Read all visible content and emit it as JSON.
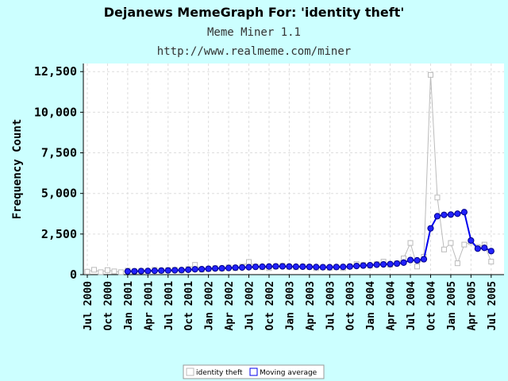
{
  "chart_data": {
    "type": "line",
    "title": "Dejanews MemeGraph For: 'identity theft'",
    "subtitle": "Meme Miner 1.1",
    "url": "http://www.realmeme.com/miner",
    "ylabel": "Frequency Count",
    "xlabel": "",
    "ylim": [
      0,
      13000
    ],
    "yticks": [
      0,
      2500,
      5000,
      7500,
      10000,
      12500
    ],
    "ytick_labels": [
      "0",
      "2,500",
      "5,000",
      "7,500",
      "10,000",
      "12,500"
    ],
    "grid": true,
    "legend_position": "bottom-center",
    "categories": [
      "Jul 2000",
      "Aug 2000",
      "Sep 2000",
      "Oct 2000",
      "Nov 2000",
      "Dec 2000",
      "Jan 2001",
      "Feb 2001",
      "Mar 2001",
      "Apr 2001",
      "May 2001",
      "Jun 2001",
      "Jul 2001",
      "Aug 2001",
      "Sep 2001",
      "Oct 2001",
      "Nov 2001",
      "Dec 2001",
      "Jan 2002",
      "Feb 2002",
      "Mar 2002",
      "Apr 2002",
      "May 2002",
      "Jun 2002",
      "Jul 2002",
      "Aug 2002",
      "Sep 2002",
      "Oct 2002",
      "Nov 2002",
      "Dec 2002",
      "Jan 2003",
      "Feb 2003",
      "Mar 2003",
      "Apr 2003",
      "May 2003",
      "Jun 2003",
      "Jul 2003",
      "Aug 2003",
      "Sep 2003",
      "Oct 2003",
      "Nov 2003",
      "Dec 2003",
      "Jan 2004",
      "Feb 2004",
      "Mar 2004",
      "Apr 2004",
      "May 2004",
      "Jun 2004",
      "Jul 2004",
      "Aug 2004",
      "Sep 2004",
      "Oct 2004",
      "Nov 2004",
      "Dec 2004",
      "Jan 2005",
      "Feb 2005",
      "Mar 2005",
      "Apr 2005",
      "May 2005",
      "Jun 2005",
      "Jul 2005"
    ],
    "xtick_labels": [
      "Jul 2000",
      "Oct 2000",
      "Jan 2001",
      "Apr 2001",
      "Jul 2001",
      "Oct 2001",
      "Jan 2002",
      "Apr 2002",
      "Jul 2002",
      "Oct 2002",
      "Jan 2003",
      "Apr 2003",
      "Jul 2003",
      "Oct 2003",
      "Jan 2004",
      "Apr 2004",
      "Jul 2004",
      "Oct 2004",
      "Jan 2005",
      "Apr 2005",
      "Jul 2005"
    ],
    "series": [
      {
        "name": "identity theft",
        "color": "#bbbbbb",
        "marker": "square",
        "values": [
          180,
          300,
          150,
          280,
          200,
          150,
          250,
          200,
          220,
          180,
          300,
          250,
          280,
          300,
          250,
          350,
          600,
          300,
          350,
          400,
          380,
          450,
          400,
          500,
          780,
          500,
          450,
          400,
          500,
          550,
          480,
          450,
          500,
          480,
          400,
          450,
          420,
          450,
          400,
          500,
          650,
          600,
          550,
          650,
          800,
          600,
          700,
          1000,
          1950,
          500,
          1100,
          12300,
          4750,
          1550,
          1950,
          700,
          1850,
          2000,
          1700,
          1850,
          800
        ]
      },
      {
        "name": "Moving average",
        "color": "#0000ee",
        "marker": "circle",
        "values": [
          null,
          null,
          null,
          null,
          null,
          null,
          200,
          210,
          220,
          230,
          240,
          250,
          260,
          270,
          280,
          300,
          330,
          340,
          360,
          380,
          390,
          410,
          430,
          440,
          460,
          480,
          490,
          500,
          510,
          510,
          500,
          490,
          490,
          480,
          470,
          460,
          460,
          470,
          480,
          500,
          530,
          560,
          580,
          610,
          630,
          650,
          680,
          740,
          900,
          880,
          950,
          2850,
          3600,
          3680,
          3700,
          3750,
          3850,
          2100,
          1600,
          1650,
          1450
        ]
      }
    ]
  },
  "legend": {
    "items": [
      "identity theft",
      "Moving average"
    ]
  }
}
